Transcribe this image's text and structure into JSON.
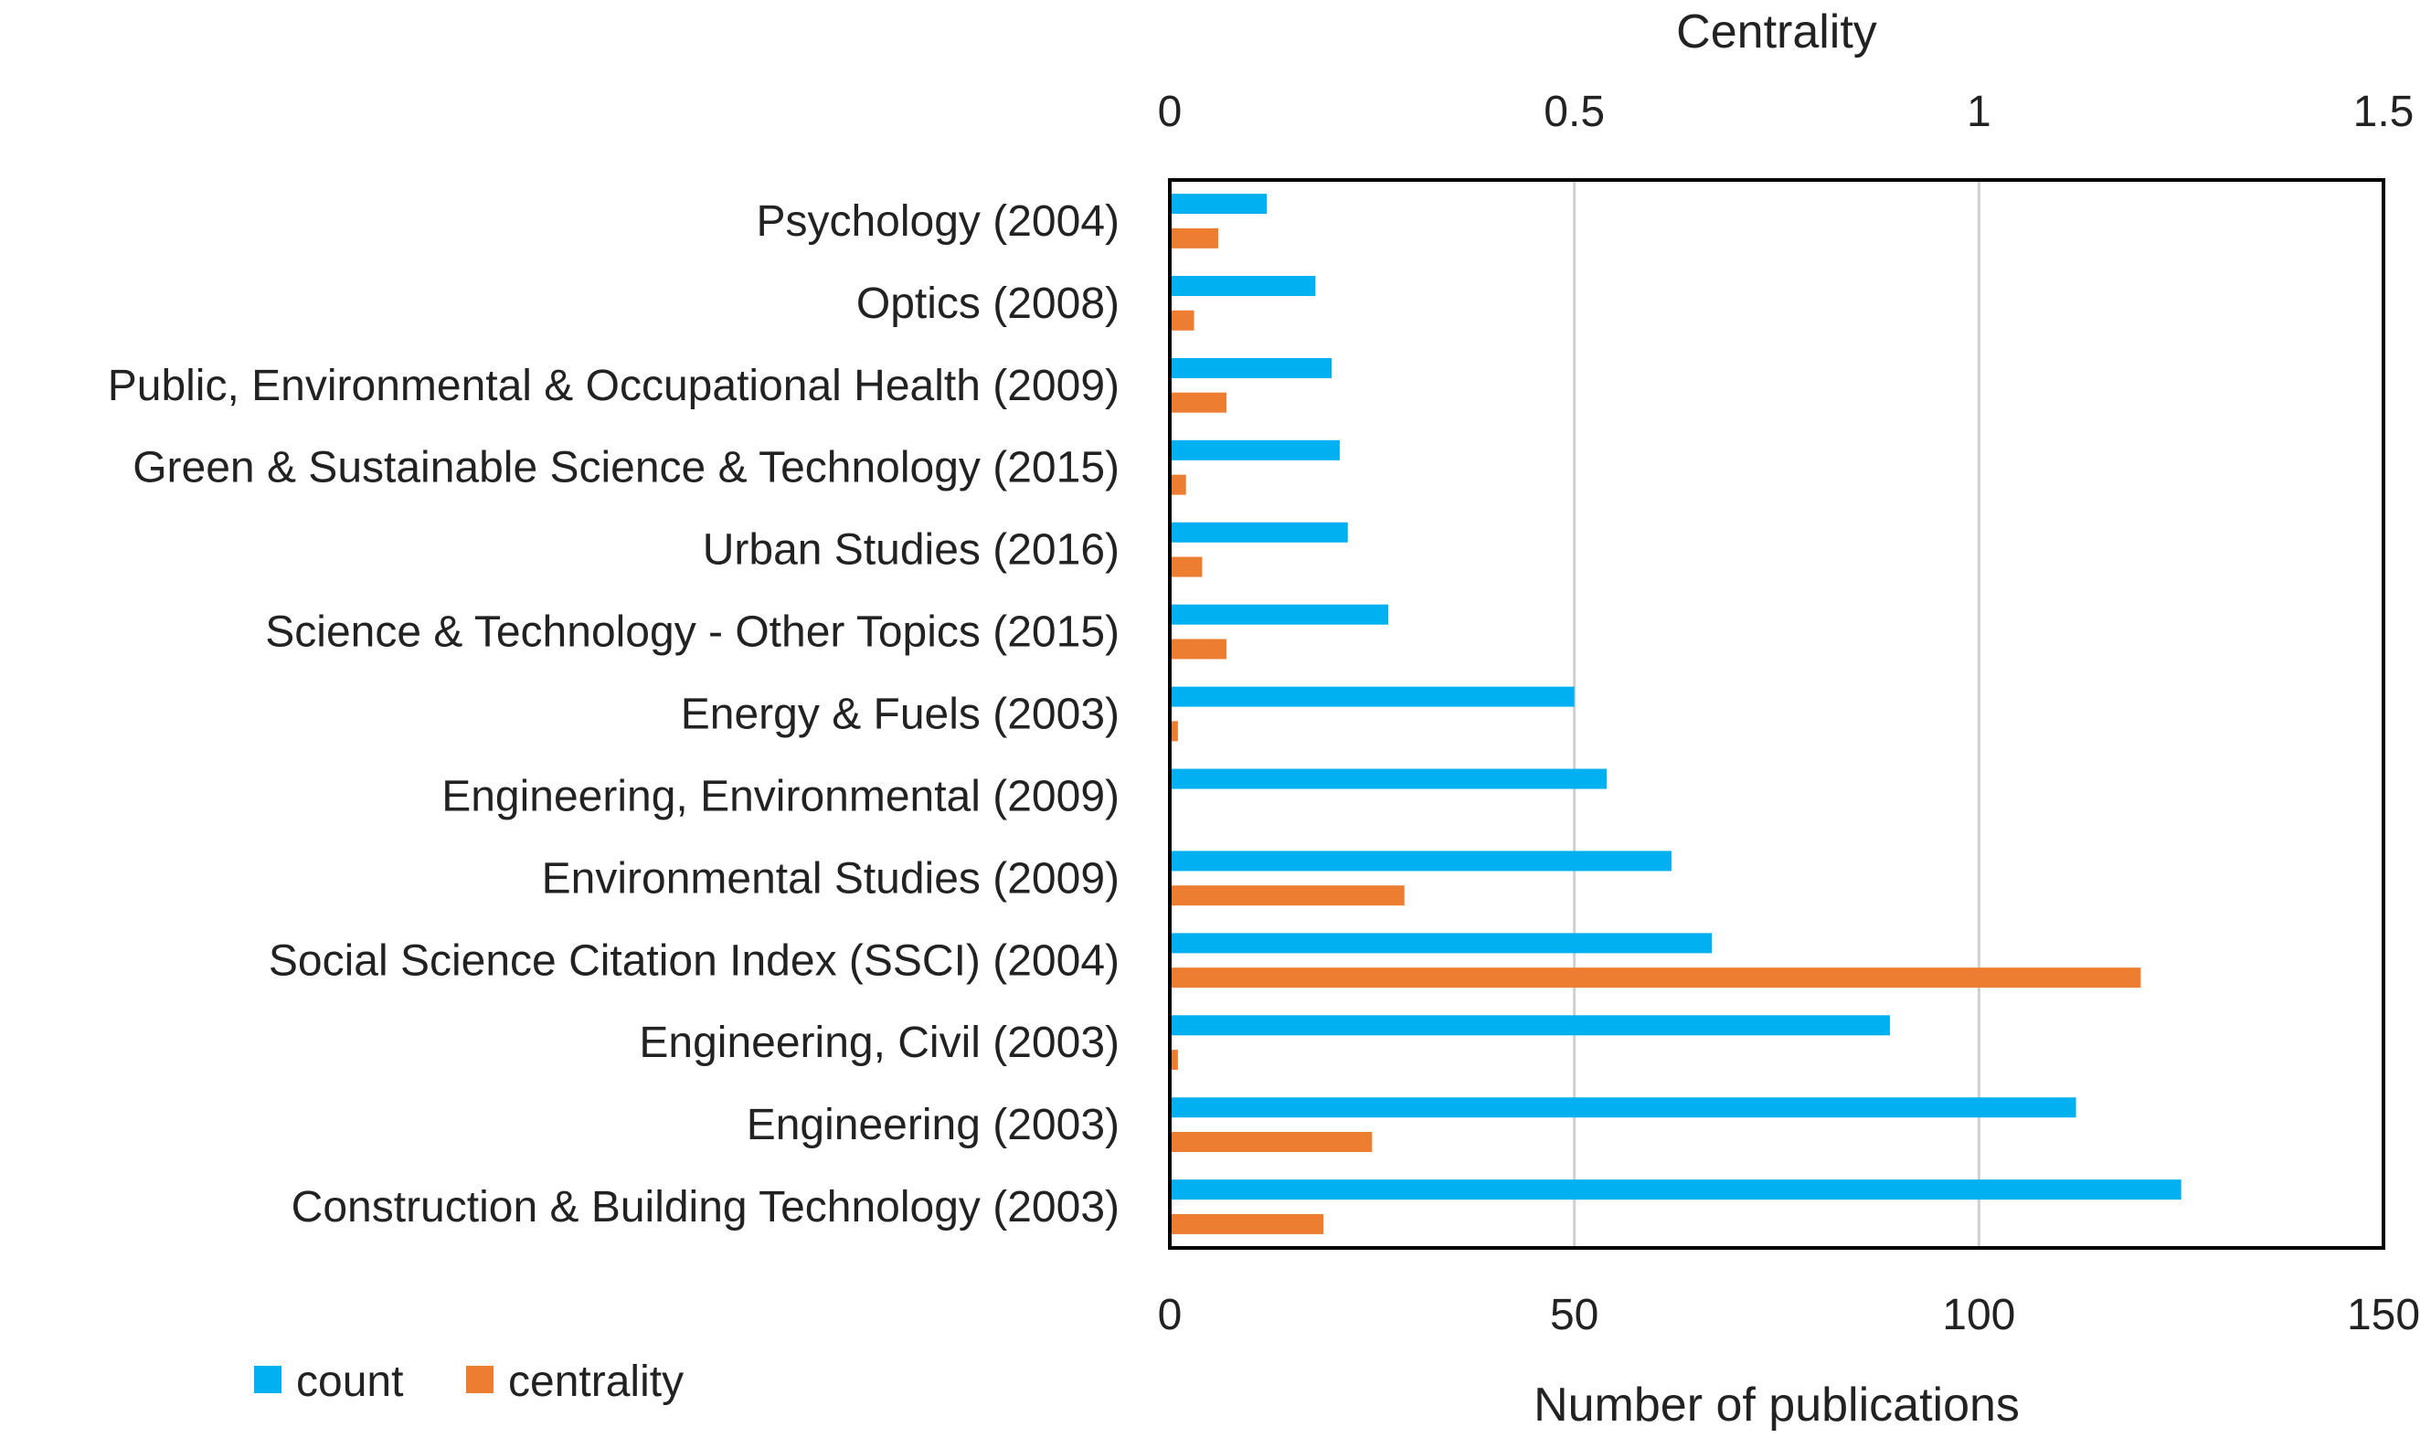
{
  "chart_data": {
    "type": "bar",
    "orientation": "horizontal",
    "categories": [
      "Psychology (2004)",
      "Optics (2008)",
      "Public, Environmental & Occupational Health (2009)",
      "Green & Sustainable Science & Technology (2015)",
      "Urban Studies (2016)",
      "Science & Technology - Other Topics (2015)",
      "Energy & Fuels (2003)",
      "Engineering, Environmental (2009)",
      "Environmental Studies (2009)",
      "Social Science Citation Index (SSCI) (2004)",
      "Engineering, Civil (2003)",
      "Engineering (2003)",
      "Construction & Building Technology (2003)"
    ],
    "series": [
      {
        "name": "count",
        "color": "#00b0f0",
        "axis": "bottom",
        "values": [
          12,
          18,
          20,
          21,
          22,
          27,
          50,
          54,
          62,
          67,
          89,
          112,
          125
        ]
      },
      {
        "name": "centrality",
        "color": "#ed7d31",
        "axis": "top",
        "values": [
          0.06,
          0.03,
          0.07,
          0.02,
          0.04,
          0.07,
          0.01,
          0.0,
          0.29,
          1.2,
          0.01,
          0.25,
          0.19
        ]
      }
    ],
    "bottom_axis": {
      "title": "Number of publications",
      "range": [
        0,
        150
      ],
      "ticks": [
        0,
        50,
        100,
        150
      ],
      "tick_labels": [
        "0",
        "50",
        "100",
        "150"
      ]
    },
    "top_axis": {
      "title": "Centrality",
      "range": [
        0,
        1.5
      ],
      "ticks": [
        0,
        0.5,
        1,
        1.5
      ],
      "tick_labels": [
        "0",
        "0.5",
        "1",
        "1.5"
      ]
    },
    "grid": true,
    "legend": {
      "placement": "bottom-left",
      "entries": [
        "count",
        "centrality"
      ]
    }
  }
}
